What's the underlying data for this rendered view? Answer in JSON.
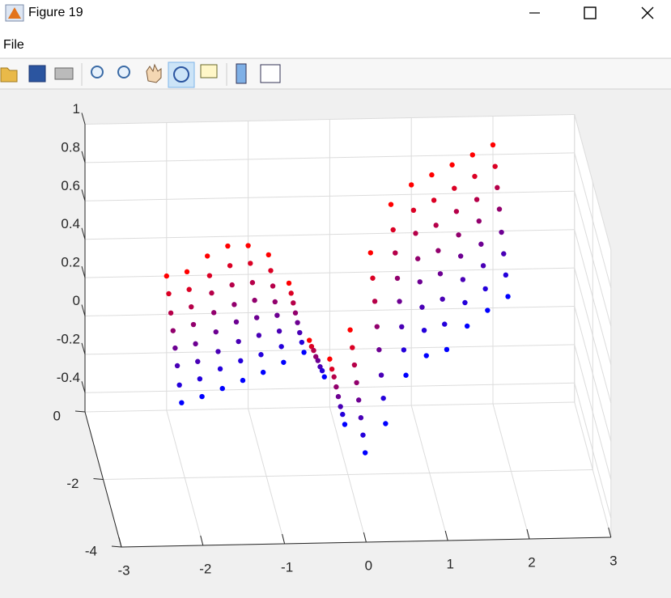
{
  "window": {
    "title": "Figure 19",
    "menu": [
      "File"
    ]
  },
  "chart_data": {
    "type": "scatter3",
    "x": [
      -2,
      -1.75,
      -1.5,
      -1.25,
      -1,
      -0.75,
      -0.5,
      -0.25,
      0,
      0.25,
      0.5,
      0.75,
      1,
      1.25,
      1.5,
      1.75,
      2
    ],
    "series": [
      {
        "color": "#ff0000",
        "y": 0,
        "z": [
          0.2,
          0.22,
          0.3,
          0.35,
          0.35,
          0.3,
          0.15,
          -0.15,
          -0.25,
          -0.1,
          0.3,
          0.55,
          0.65,
          0.7,
          0.75,
          0.8,
          0.85
        ]
      },
      {
        "color": "#db0024",
        "y": -0.24,
        "z": [
          0.15,
          0.17,
          0.24,
          0.29,
          0.3,
          0.26,
          0.14,
          -0.14,
          -0.26,
          -0.15,
          0.21,
          0.46,
          0.56,
          0.61,
          0.67,
          0.73,
          0.78
        ]
      },
      {
        "color": "#b60049",
        "y": -0.47,
        "z": [
          0.09,
          0.12,
          0.19,
          0.23,
          0.24,
          0.22,
          0.13,
          -0.12,
          -0.26,
          -0.2,
          0.13,
          0.38,
          0.48,
          0.52,
          0.59,
          0.65,
          0.71
        ]
      },
      {
        "color": "#92006d",
        "y": -0.71,
        "z": [
          0.04,
          0.07,
          0.13,
          0.17,
          0.19,
          0.18,
          0.12,
          -0.11,
          -0.27,
          -0.25,
          0.04,
          0.29,
          0.39,
          0.43,
          0.51,
          0.58,
          0.64
        ]
      },
      {
        "color": "#6d0092",
        "y": -0.94,
        "z": [
          -0.01,
          0.01,
          0.07,
          0.12,
          0.14,
          0.15,
          0.11,
          -0.09,
          -0.28,
          -0.3,
          -0.04,
          0.21,
          0.31,
          0.35,
          0.44,
          0.5,
          0.56
        ]
      },
      {
        "color": "#4900b6",
        "y": -1.18,
        "z": [
          -0.06,
          -0.04,
          0.01,
          0.06,
          0.09,
          0.11,
          0.1,
          -0.08,
          -0.29,
          -0.35,
          -0.13,
          0.12,
          0.22,
          0.26,
          0.36,
          0.43,
          0.49
        ]
      },
      {
        "color": "#2400db",
        "y": -1.41,
        "z": [
          -0.12,
          -0.09,
          -0.04,
          0,
          0.03,
          0.07,
          0.09,
          -0.06,
          -0.29,
          -0.4,
          -0.21,
          0.04,
          0.14,
          0.17,
          0.28,
          0.35,
          0.42
        ]
      },
      {
        "color": "#0000ff",
        "y": -1.65,
        "z": [
          -0.17,
          -0.14,
          -0.1,
          -0.06,
          -0.02,
          0.03,
          0.08,
          -0.05,
          -0.3,
          -0.45,
          -0.3,
          -0.05,
          0.05,
          0.08,
          0.2,
          0.28,
          0.35
        ]
      }
    ],
    "xlim": [
      -3,
      3
    ],
    "xticks": [
      -3,
      -2,
      -1,
      0,
      1,
      2,
      3
    ],
    "ylim": [
      -4,
      0
    ],
    "yticks": [
      0,
      -2,
      -4
    ],
    "zlim": [
      -0.5,
      1
    ],
    "zticks": [
      -0.4,
      -0.2,
      0,
      0.2,
      0.4,
      0.6,
      0.8,
      1
    ],
    "grid": true
  }
}
